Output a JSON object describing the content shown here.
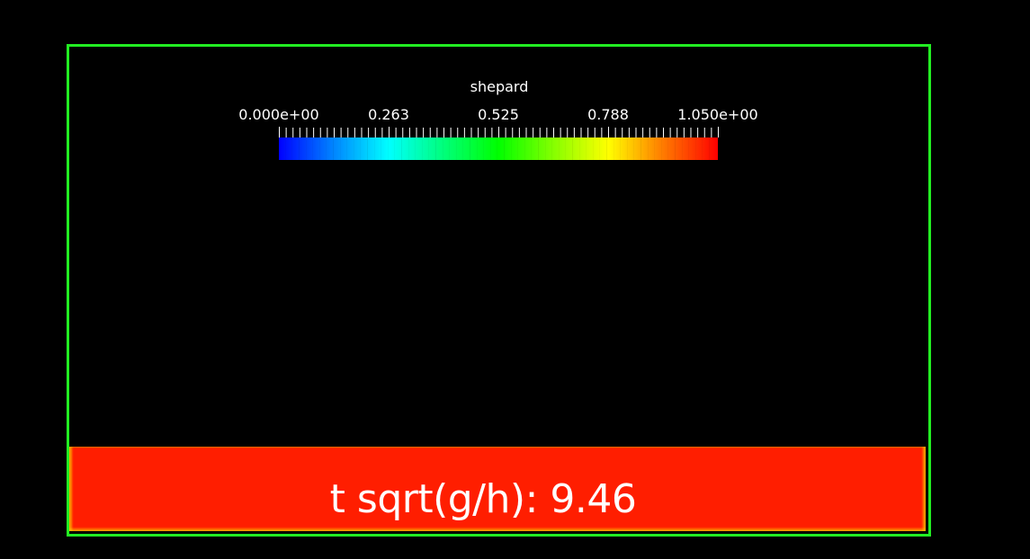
{
  "colorbar": {
    "title": "shepard",
    "tick_labels": [
      "0.000e+00",
      "0.263",
      "0.525",
      "0.788",
      "1.050e+00"
    ],
    "range": [
      0.0,
      1.05
    ],
    "colormap": [
      "#0000ff",
      "#00ffff",
      "#00ff00",
      "#ffff00",
      "#ff0000"
    ]
  },
  "overlay": {
    "time_text": "t sqrt(g/h): 9.46"
  },
  "colors": {
    "background": "#000000",
    "domain_outline": "#22ee22",
    "fluid": "#ff1e00"
  }
}
